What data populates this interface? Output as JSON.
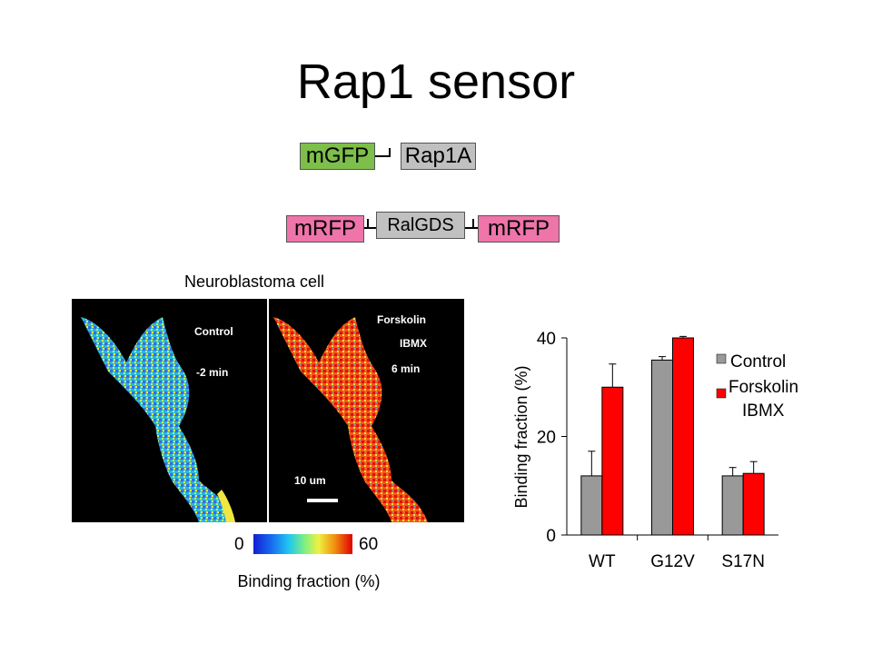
{
  "title": "Rap1 sensor",
  "constructs": {
    "mgfp": "mGFP",
    "rap1a": "Rap1A",
    "mrfp_left": "mRFP",
    "ralgds": "RalGDS",
    "mrfp_right": "mRFP"
  },
  "imaging": {
    "title": "Neuroblastoma cell",
    "left_panel": {
      "condition": "Control",
      "time": "-2 min"
    },
    "right_panel": {
      "condition_line1": "Forskolin",
      "condition_line2": "IBMX",
      "time": "6 min",
      "scale_bar": "10 um"
    },
    "colorbar": {
      "min_label": "0",
      "max_label": "60",
      "title": "Binding fraction (%)"
    }
  },
  "colors": {
    "control": "#999999",
    "forskolin_ibmx": "#ff0000",
    "mgfp": "#7dbf4a",
    "mrfp": "#ee74aa",
    "ralgds_rap1a": "#c0c0c0"
  },
  "chart_data": {
    "type": "bar",
    "categories": [
      "WT",
      "G12V",
      "S17N"
    ],
    "ylabel": "Binding fraction (%)",
    "ylim": [
      0,
      40
    ],
    "yticks": [
      "0",
      "20",
      "40"
    ],
    "legend_position": "top-right",
    "legend": {
      "control": "Control",
      "forskolin_line1": "Forskolin",
      "forskolin_line2": "IBMX"
    },
    "series": [
      {
        "name": "Control",
        "values": [
          12,
          35.5,
          12
        ],
        "errors": [
          5,
          0.7,
          1.7
        ],
        "color": "#999999"
      },
      {
        "name": "Forskolin IBMX",
        "values": [
          30,
          40,
          12.5
        ],
        "errors": [
          4.7,
          0.3,
          2.4
        ],
        "color": "#ff0000"
      }
    ]
  }
}
